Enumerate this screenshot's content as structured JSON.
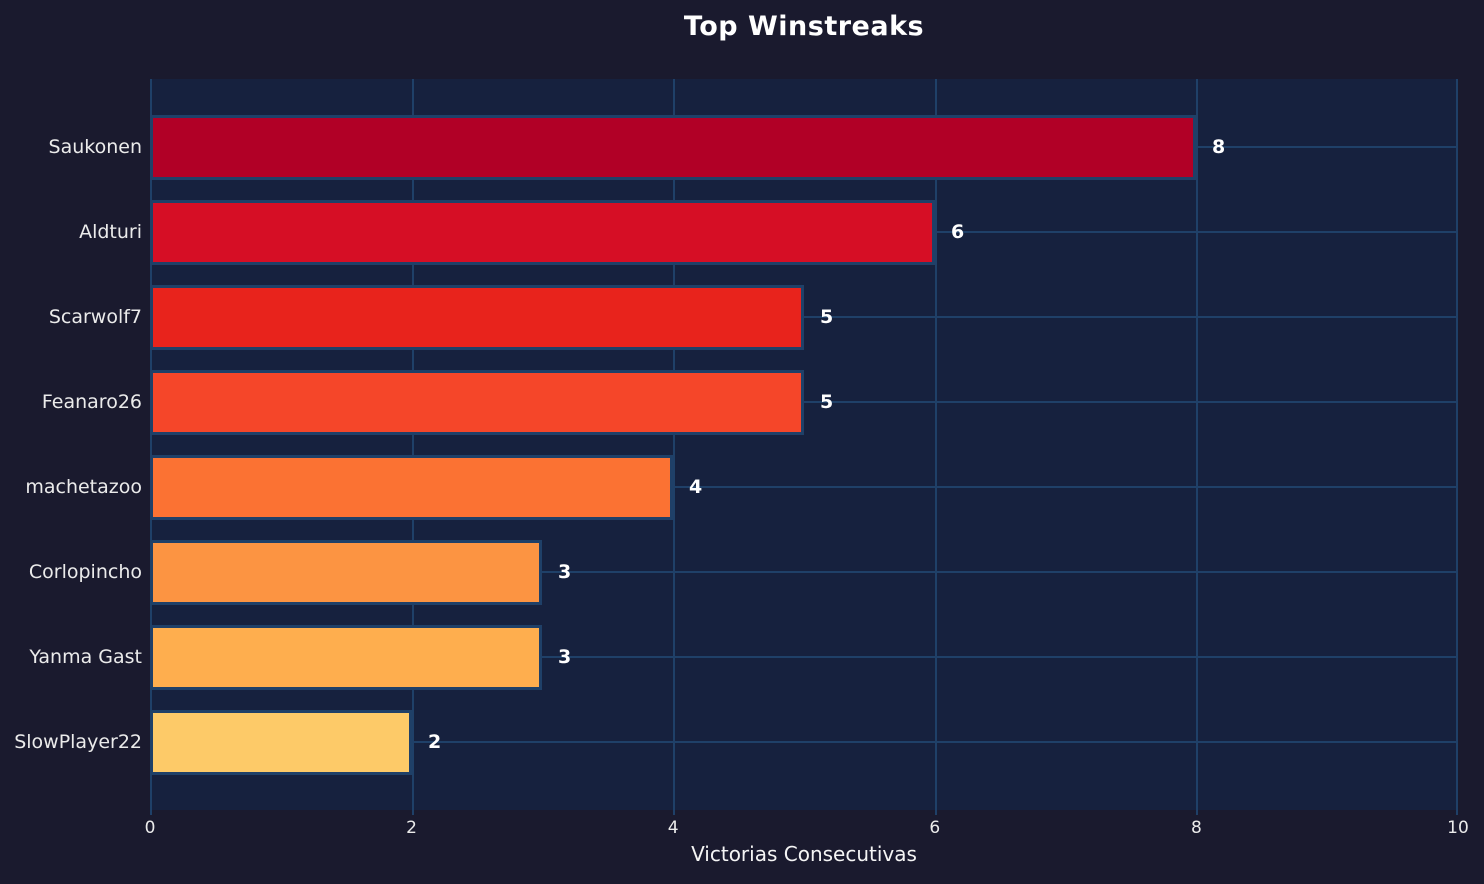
{
  "chart_data": {
    "type": "bar",
    "orientation": "horizontal",
    "title": "Top Winstreaks",
    "xlabel": "Victorias Consecutivas",
    "ylabel": "",
    "categories": [
      "Saukonen",
      "Aldturi",
      "Scarwolf7",
      "Feanaro26",
      "machetazoo",
      "Corlopincho",
      "Yanma Gast",
      "SlowPlayer22"
    ],
    "values": [
      8,
      6,
      5,
      5,
      4,
      3,
      3,
      2
    ],
    "value_labels": [
      "8",
      "6",
      "5",
      "5",
      "4",
      "3",
      "3",
      "2"
    ],
    "bar_colors": [
      "#b10026",
      "#d60e25",
      "#e8231c",
      "#f54629",
      "#fb7233",
      "#fc9442",
      "#feae4e",
      "#fdca68"
    ],
    "xticks": [
      0,
      2,
      4,
      6,
      8,
      10
    ],
    "xlim": [
      0,
      10
    ],
    "grid": true,
    "legend": false
  },
  "colors": {
    "background": "#1a1a2e",
    "plot_background": "#16213e",
    "grid": "#1f4068",
    "text": "#ebebeb",
    "title": "#ffffff"
  }
}
